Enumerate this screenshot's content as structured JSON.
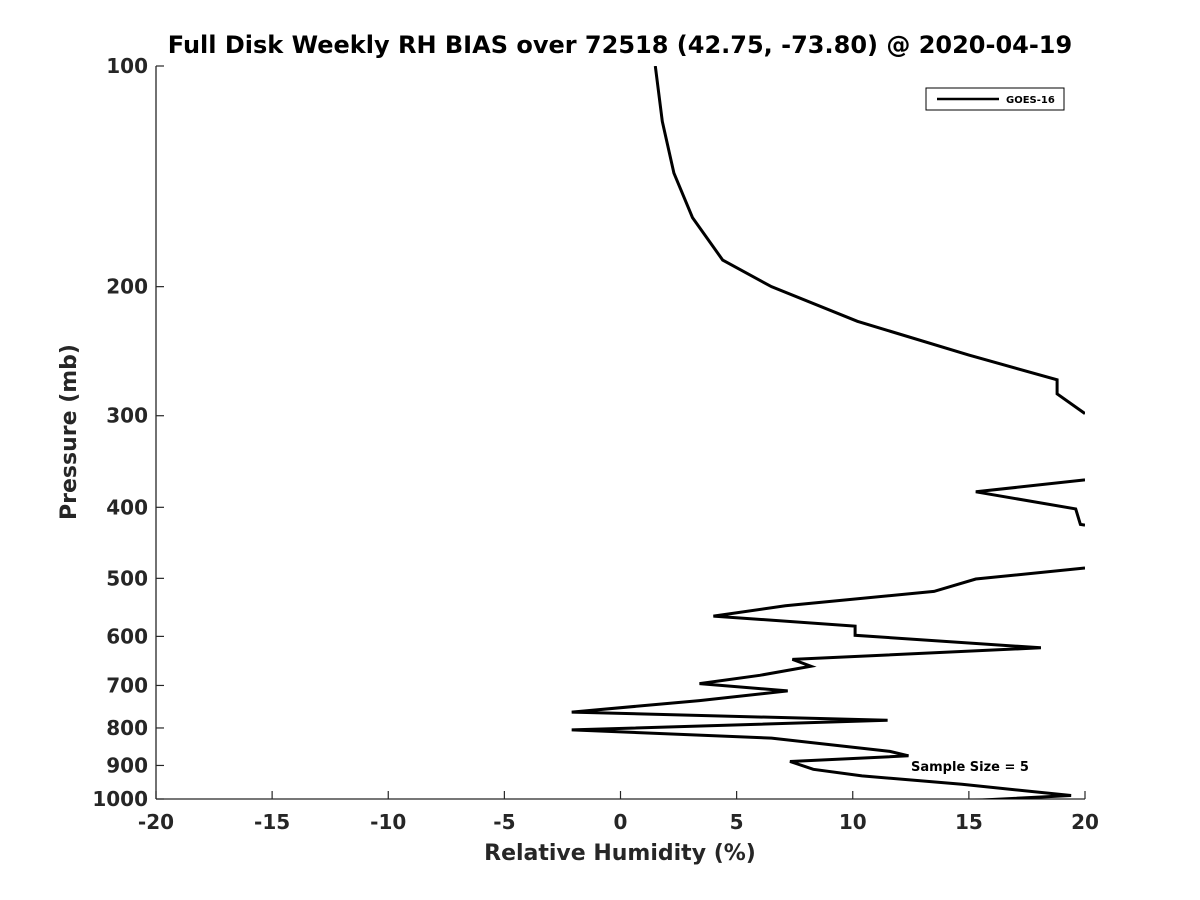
{
  "chart_data": {
    "type": "line",
    "title": "Full Disk Weekly RH BIAS over 72518 (42.75, -73.80) @ 2020-04-19",
    "xlabel": "Relative Humidity (%)",
    "ylabel": "Pressure (mb)",
    "xlim": [
      -20,
      20
    ],
    "ylim": [
      100,
      1000
    ],
    "y_scale": "log",
    "y_reversed": true,
    "x_ticks": [
      "-20",
      "-15",
      "-10",
      "-5",
      "0",
      "5",
      "10",
      "15",
      "20"
    ],
    "y_ticks": [
      "100",
      "200",
      "300",
      "400",
      "500",
      "600",
      "700",
      "800",
      "900",
      "1000"
    ],
    "grid": false,
    "legend": {
      "placement": "top-right",
      "entries": [
        "GOES-16"
      ]
    },
    "annotation": "Sample Size = 5",
    "series": [
      {
        "name": "GOES-16",
        "color": "#000000",
        "segments": [
          [
            [
              1.5,
              100
            ],
            [
              1.8,
              119
            ],
            [
              2.3,
              140
            ],
            [
              3.1,
              161
            ],
            [
              4.4,
              184
            ],
            [
              6.5,
              200
            ],
            [
              10.2,
              223
            ],
            [
              15.0,
              248
            ],
            [
              18.8,
              268
            ],
            [
              18.8,
              280
            ],
            [
              20.0,
              298
            ]
          ],
          [
            [
              20.0,
              367
            ],
            [
              15.3,
              381
            ],
            [
              19.6,
              402
            ],
            [
              19.8,
              422
            ],
            [
              20.0,
              423
            ]
          ],
          [
            [
              20.0,
              484
            ],
            [
              15.3,
              501
            ],
            [
              13.5,
              521
            ],
            [
              7.1,
              545
            ],
            [
              4.0,
              563
            ],
            [
              10.1,
              581
            ],
            [
              10.1,
              598
            ],
            [
              18.1,
              622
            ],
            [
              7.4,
              645
            ],
            [
              8.2,
              659
            ],
            [
              6.0,
              678
            ],
            [
              3.4,
              696
            ],
            [
              7.2,
              712
            ],
            [
              3.4,
              734
            ],
            [
              -2.1,
              761
            ],
            [
              11.5,
              781
            ],
            [
              -2.1,
              805
            ],
            [
              6.5,
              826
            ],
            [
              11.6,
              861
            ],
            [
              12.4,
              873
            ],
            [
              7.3,
              889
            ],
            [
              8.3,
              911
            ],
            [
              10.4,
              930
            ],
            [
              14.7,
              955
            ],
            [
              19.4,
              989
            ],
            [
              13.7,
              1010
            ]
          ]
        ]
      }
    ]
  }
}
